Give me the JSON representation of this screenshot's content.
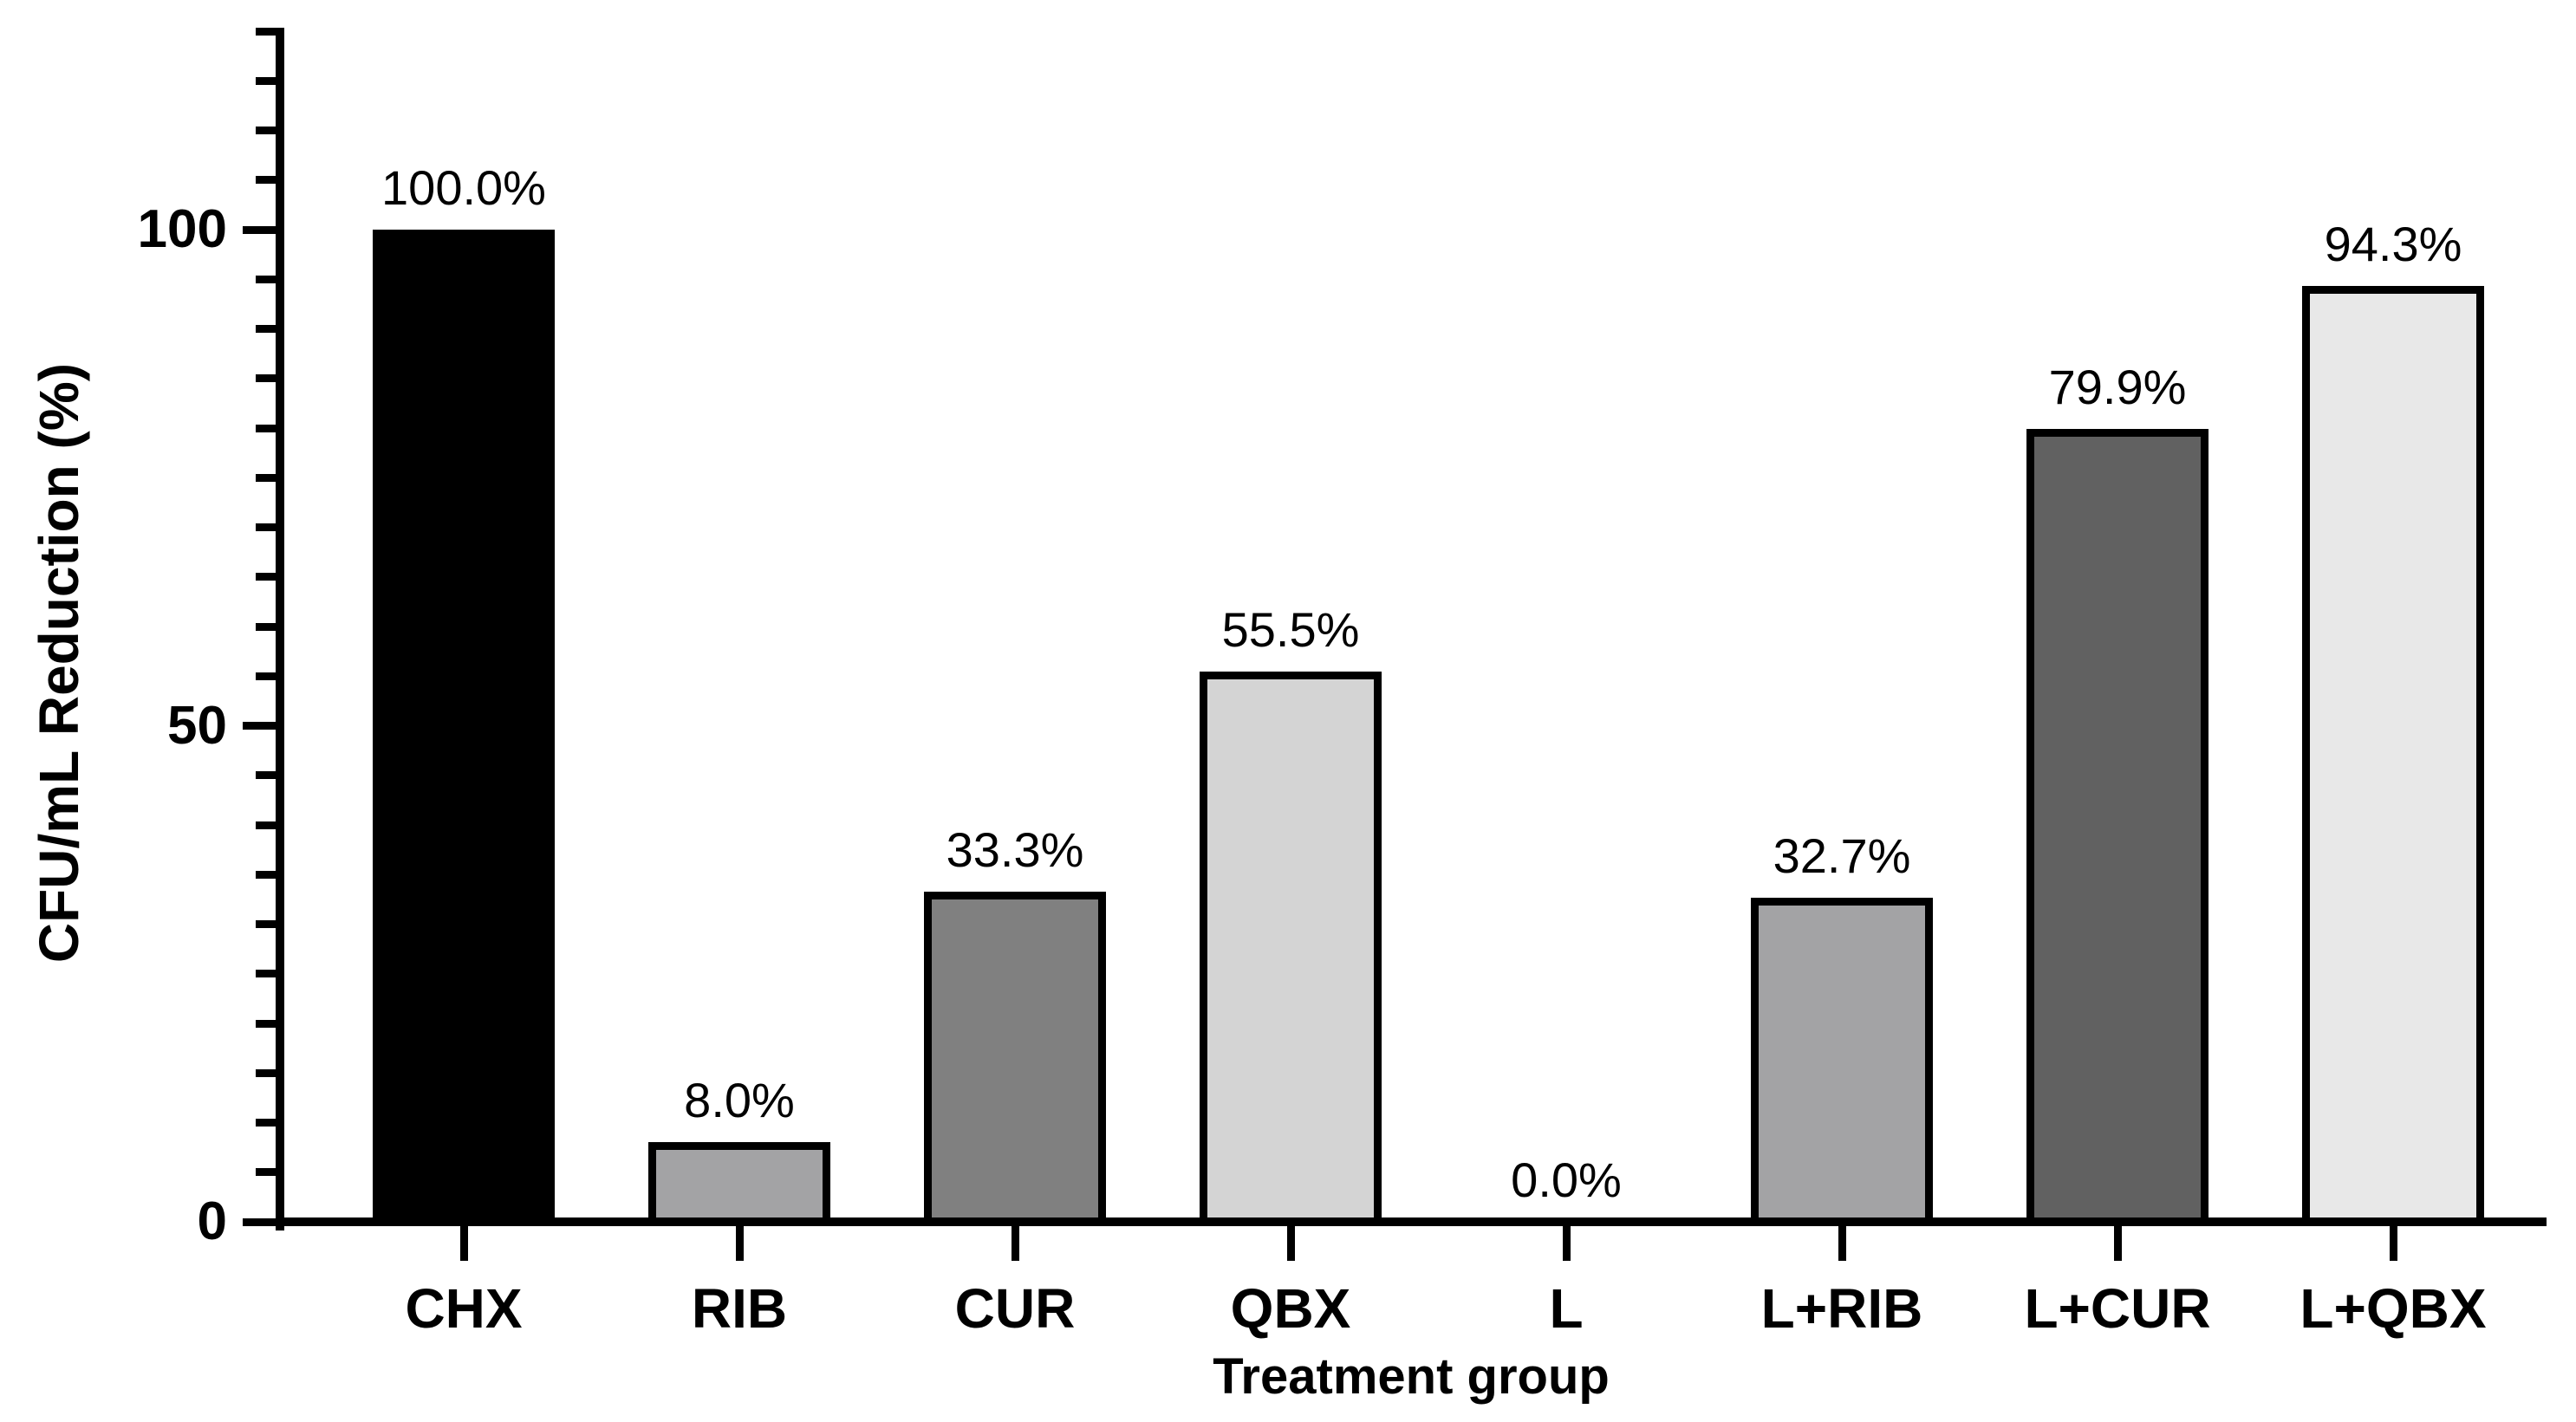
{
  "chart_data": {
    "type": "bar",
    "title": "",
    "xlabel": "Treatment group",
    "ylabel": "CFU/mL Reduction (%)",
    "categories": [
      "CHX",
      "RIB",
      "CUR",
      "QBX",
      "L",
      "L+RIB",
      "L+CUR",
      "L+QBX"
    ],
    "values": [
      100.0,
      8.0,
      33.3,
      55.5,
      0.0,
      32.7,
      79.9,
      94.3
    ],
    "value_labels": [
      "100.0%",
      "8.0%",
      "33.3%",
      "55.5%",
      "0.0%",
      "32.7%",
      "79.9%",
      "94.3%"
    ],
    "bar_colors": [
      "#000000",
      "#a3a3a5",
      "#808080",
      "#d4d4d4",
      null,
      "#a3a3a5",
      "#616161",
      "#e8e8e8"
    ],
    "bar_outline_color": "#000000",
    "axis_color": "#000000",
    "background_color": "#ffffff",
    "ylim": [
      0,
      120
    ],
    "ytick_major_values": [
      0,
      50,
      100
    ],
    "ytick_major_labels": [
      "0",
      "50",
      "100"
    ],
    "ytick_minor_step": 5,
    "grid": false,
    "legend": false
  }
}
